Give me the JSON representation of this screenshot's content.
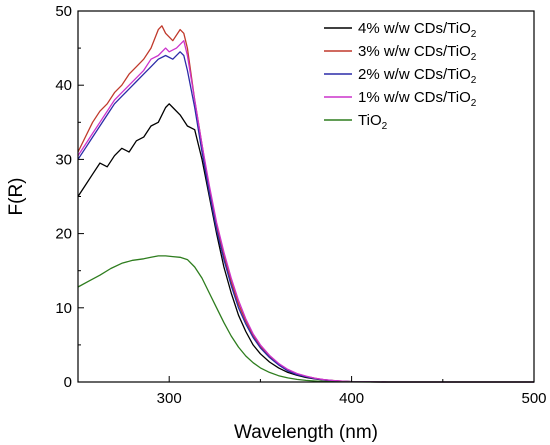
{
  "chart_data": {
    "type": "line",
    "title": "",
    "xlabel": "Wavelength (nm)",
    "ylabel": "F(R)",
    "xlim": [
      250,
      500
    ],
    "ylim": [
      0,
      50
    ],
    "x_ticks": [
      300,
      400,
      500
    ],
    "y_ticks": [
      0,
      10,
      20,
      30,
      40,
      50
    ],
    "grid": false,
    "legend_position": "top-right",
    "series": [
      {
        "name_main": "4% w/w CDs/TiO",
        "name_sub": "2",
        "color": "#000000",
        "points": [
          [
            250,
            25
          ],
          [
            254,
            26.5
          ],
          [
            258,
            28
          ],
          [
            262,
            29.5
          ],
          [
            266,
            29
          ],
          [
            270,
            30.5
          ],
          [
            274,
            31.5
          ],
          [
            278,
            31
          ],
          [
            282,
            32.5
          ],
          [
            286,
            33
          ],
          [
            290,
            34.5
          ],
          [
            294,
            35
          ],
          [
            298,
            37
          ],
          [
            300,
            37.5
          ],
          [
            302,
            37
          ],
          [
            306,
            36
          ],
          [
            310,
            34.5
          ],
          [
            314,
            34
          ],
          [
            318,
            30
          ],
          [
            322,
            25
          ],
          [
            326,
            20
          ],
          [
            330,
            15.5
          ],
          [
            334,
            12
          ],
          [
            338,
            9
          ],
          [
            342,
            6.8
          ],
          [
            346,
            5
          ],
          [
            350,
            3.8
          ],
          [
            355,
            2.7
          ],
          [
            360,
            1.9
          ],
          [
            365,
            1.3
          ],
          [
            370,
            0.9
          ],
          [
            375,
            0.6
          ],
          [
            380,
            0.4
          ],
          [
            385,
            0.25
          ],
          [
            390,
            0.15
          ],
          [
            395,
            0.1
          ],
          [
            400,
            0.05
          ],
          [
            410,
            0.02
          ],
          [
            420,
            0
          ],
          [
            500,
            0
          ]
        ]
      },
      {
        "name_main": "3% w/w CDs/TiO",
        "name_sub": "2",
        "color": "#c0392b",
        "points": [
          [
            250,
            31
          ],
          [
            254,
            33
          ],
          [
            258,
            35
          ],
          [
            262,
            36.5
          ],
          [
            266,
            37.5
          ],
          [
            270,
            39
          ],
          [
            274,
            40
          ],
          [
            278,
            41.5
          ],
          [
            282,
            42.5
          ],
          [
            286,
            43.5
          ],
          [
            290,
            45
          ],
          [
            294,
            47.5
          ],
          [
            296,
            48
          ],
          [
            298,
            47
          ],
          [
            302,
            46
          ],
          [
            306,
            47.5
          ],
          [
            308,
            47
          ],
          [
            310,
            45
          ],
          [
            314,
            38
          ],
          [
            318,
            32
          ],
          [
            322,
            26
          ],
          [
            326,
            21
          ],
          [
            330,
            17
          ],
          [
            334,
            13.5
          ],
          [
            338,
            10.5
          ],
          [
            342,
            8.2
          ],
          [
            346,
            6.3
          ],
          [
            350,
            4.8
          ],
          [
            355,
            3.4
          ],
          [
            360,
            2.4
          ],
          [
            365,
            1.6
          ],
          [
            370,
            1.1
          ],
          [
            375,
            0.75
          ],
          [
            380,
            0.5
          ],
          [
            385,
            0.3
          ],
          [
            390,
            0.2
          ],
          [
            395,
            0.12
          ],
          [
            400,
            0.06
          ],
          [
            410,
            0.02
          ],
          [
            420,
            0
          ],
          [
            500,
            0
          ]
        ]
      },
      {
        "name_main": "2% w/w CDs/TiO",
        "name_sub": "2",
        "color": "#2c2ca8",
        "points": [
          [
            250,
            30
          ],
          [
            254,
            31.5
          ],
          [
            258,
            33
          ],
          [
            262,
            34.5
          ],
          [
            266,
            36
          ],
          [
            270,
            37.5
          ],
          [
            274,
            38.5
          ],
          [
            278,
            39.5
          ],
          [
            282,
            40.5
          ],
          [
            286,
            41.5
          ],
          [
            290,
            42.5
          ],
          [
            294,
            43.5
          ],
          [
            298,
            44
          ],
          [
            302,
            43.5
          ],
          [
            306,
            44.5
          ],
          [
            308,
            44
          ],
          [
            310,
            42
          ],
          [
            314,
            37
          ],
          [
            318,
            31
          ],
          [
            322,
            25.5
          ],
          [
            326,
            20.5
          ],
          [
            330,
            16.5
          ],
          [
            334,
            13
          ],
          [
            338,
            10
          ],
          [
            342,
            7.8
          ],
          [
            346,
            6
          ],
          [
            350,
            4.6
          ],
          [
            355,
            3.3
          ],
          [
            360,
            2.3
          ],
          [
            365,
            1.5
          ],
          [
            370,
            1
          ],
          [
            375,
            0.7
          ],
          [
            380,
            0.45
          ],
          [
            385,
            0.3
          ],
          [
            390,
            0.18
          ],
          [
            395,
            0.1
          ],
          [
            400,
            0.05
          ],
          [
            410,
            0.02
          ],
          [
            420,
            0
          ],
          [
            500,
            0
          ]
        ]
      },
      {
        "name_main": "1% w/w CDs/TiO",
        "name_sub": "2",
        "color": "#cc33cc",
        "points": [
          [
            250,
            30.5
          ],
          [
            254,
            32
          ],
          [
            258,
            33.5
          ],
          [
            262,
            35
          ],
          [
            266,
            36.5
          ],
          [
            270,
            38
          ],
          [
            274,
            39
          ],
          [
            278,
            40
          ],
          [
            282,
            41
          ],
          [
            286,
            42
          ],
          [
            290,
            43.5
          ],
          [
            294,
            44
          ],
          [
            298,
            45
          ],
          [
            300,
            44.5
          ],
          [
            304,
            45
          ],
          [
            308,
            46
          ],
          [
            310,
            44
          ],
          [
            314,
            38
          ],
          [
            318,
            32
          ],
          [
            322,
            26.5
          ],
          [
            326,
            21.5
          ],
          [
            330,
            17.5
          ],
          [
            334,
            14
          ],
          [
            338,
            11
          ],
          [
            342,
            8.5
          ],
          [
            346,
            6.5
          ],
          [
            350,
            5
          ],
          [
            355,
            3.6
          ],
          [
            360,
            2.5
          ],
          [
            365,
            1.7
          ],
          [
            370,
            1.15
          ],
          [
            375,
            0.8
          ],
          [
            380,
            0.5
          ],
          [
            385,
            0.32
          ],
          [
            390,
            0.2
          ],
          [
            395,
            0.12
          ],
          [
            400,
            0.06
          ],
          [
            410,
            0.02
          ],
          [
            420,
            0
          ],
          [
            500,
            0
          ]
        ]
      },
      {
        "name_main": "TiO",
        "name_sub": "2",
        "color": "#2e7d1e",
        "points": [
          [
            250,
            12.8
          ],
          [
            256,
            13.6
          ],
          [
            262,
            14.4
          ],
          [
            268,
            15.3
          ],
          [
            274,
            16
          ],
          [
            280,
            16.4
          ],
          [
            286,
            16.6
          ],
          [
            290,
            16.8
          ],
          [
            294,
            17
          ],
          [
            298,
            17
          ],
          [
            302,
            16.9
          ],
          [
            306,
            16.8
          ],
          [
            310,
            16.5
          ],
          [
            314,
            15.5
          ],
          [
            318,
            14
          ],
          [
            322,
            12
          ],
          [
            326,
            10
          ],
          [
            330,
            8
          ],
          [
            334,
            6.2
          ],
          [
            338,
            4.7
          ],
          [
            342,
            3.5
          ],
          [
            346,
            2.6
          ],
          [
            350,
            1.9
          ],
          [
            355,
            1.3
          ],
          [
            360,
            0.85
          ],
          [
            365,
            0.55
          ],
          [
            370,
            0.35
          ],
          [
            375,
            0.22
          ],
          [
            380,
            0.13
          ],
          [
            385,
            0.07
          ],
          [
            390,
            0.03
          ],
          [
            400,
            0.01
          ],
          [
            410,
            0
          ],
          [
            500,
            0
          ]
        ]
      }
    ]
  }
}
